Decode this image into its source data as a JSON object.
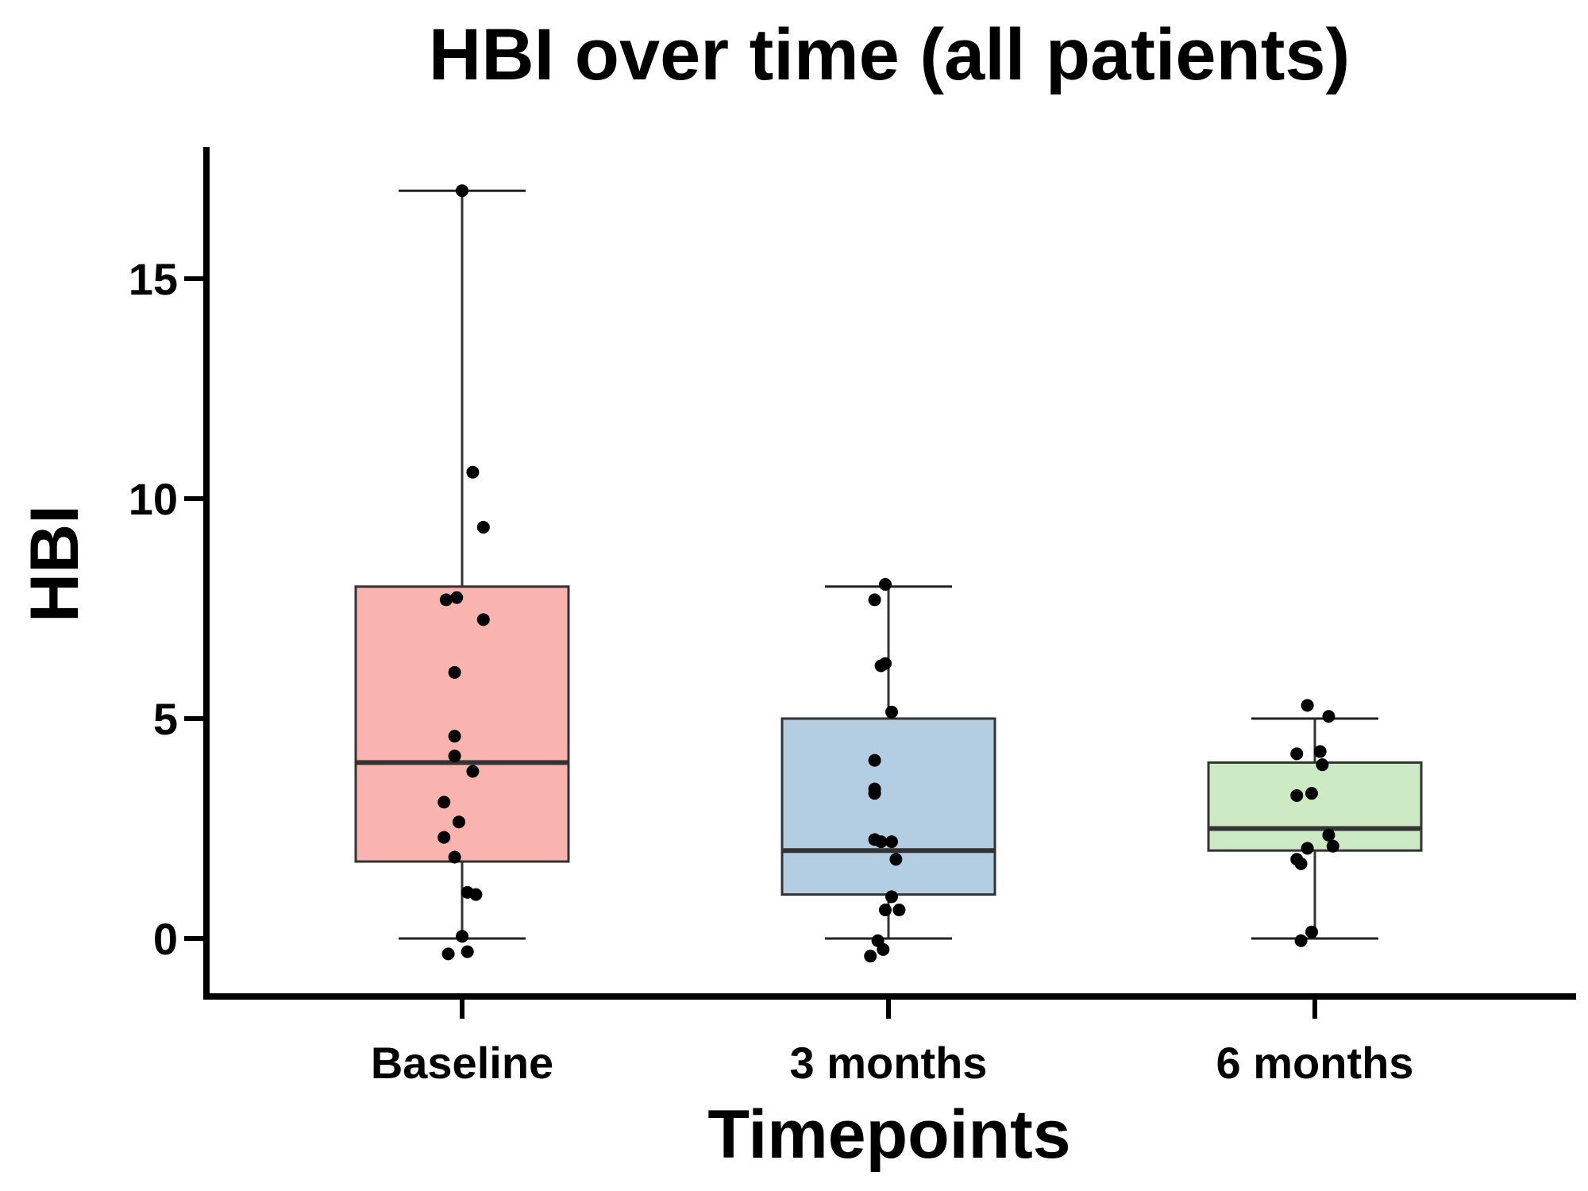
{
  "chart_data": {
    "type": "box",
    "title": "HBI over time (all patients)",
    "xlabel": "Timepoints",
    "ylabel": "HBI",
    "ylim": [
      -1.3,
      18
    ],
    "yticks": [
      0,
      5,
      10,
      15
    ],
    "categories": [
      "Baseline",
      "3 months",
      "6 months"
    ],
    "legend": "none",
    "grid": false,
    "boxes": [
      {
        "category": "Baseline",
        "color": "#F9B4B0",
        "whisker_low": 0,
        "q1": 1.75,
        "median": 4,
        "q3": 8,
        "whisker_high": 17,
        "points": [
          [
            0.0,
            17.0
          ],
          [
            0.1,
            10.6
          ],
          [
            0.2,
            9.35
          ],
          [
            -0.15,
            7.7
          ],
          [
            -0.05,
            7.75
          ],
          [
            0.2,
            7.25
          ],
          [
            -0.07,
            6.05
          ],
          [
            -0.07,
            4.6
          ],
          [
            -0.07,
            4.15
          ],
          [
            0.1,
            3.8
          ],
          [
            -0.17,
            3.1
          ],
          [
            -0.03,
            2.65
          ],
          [
            -0.17,
            2.3
          ],
          [
            -0.07,
            1.85
          ],
          [
            0.05,
            1.05
          ],
          [
            0.13,
            1.0
          ],
          [
            0.0,
            0.05
          ],
          [
            -0.13,
            -0.35
          ],
          [
            0.05,
            -0.3
          ]
        ]
      },
      {
        "category": "3 months",
        "color": "#B3CDE3",
        "whisker_low": 0,
        "q1": 1,
        "median": 2,
        "q3": 5,
        "whisker_high": 8,
        "points": [
          [
            -0.03,
            8.05
          ],
          [
            -0.13,
            7.7
          ],
          [
            -0.07,
            6.2
          ],
          [
            -0.03,
            6.25
          ],
          [
            0.03,
            5.15
          ],
          [
            -0.13,
            4.05
          ],
          [
            -0.13,
            3.4
          ],
          [
            -0.13,
            3.3
          ],
          [
            -0.13,
            2.25
          ],
          [
            -0.07,
            2.2
          ],
          [
            0.03,
            2.2
          ],
          [
            0.07,
            1.8
          ],
          [
            0.03,
            0.95
          ],
          [
            -0.03,
            0.65
          ],
          [
            0.1,
            0.65
          ],
          [
            -0.1,
            -0.05
          ],
          [
            -0.05,
            -0.25
          ],
          [
            -0.17,
            -0.4
          ]
        ]
      },
      {
        "category": "6 months",
        "color": "#CCEBC5",
        "whisker_low": 0,
        "q1": 2,
        "median": 2.5,
        "q3": 4,
        "whisker_high": 5,
        "points": [
          [
            -0.07,
            5.3
          ],
          [
            0.13,
            5.05
          ],
          [
            -0.17,
            4.2
          ],
          [
            0.05,
            4.25
          ],
          [
            0.07,
            3.95
          ],
          [
            -0.17,
            3.25
          ],
          [
            -0.03,
            3.3
          ],
          [
            -0.07,
            2.05
          ],
          [
            0.13,
            2.35
          ],
          [
            0.17,
            2.1
          ],
          [
            -0.17,
            1.8
          ],
          [
            -0.13,
            1.7
          ],
          [
            -0.03,
            0.15
          ],
          [
            -0.13,
            -0.05
          ]
        ]
      }
    ]
  }
}
